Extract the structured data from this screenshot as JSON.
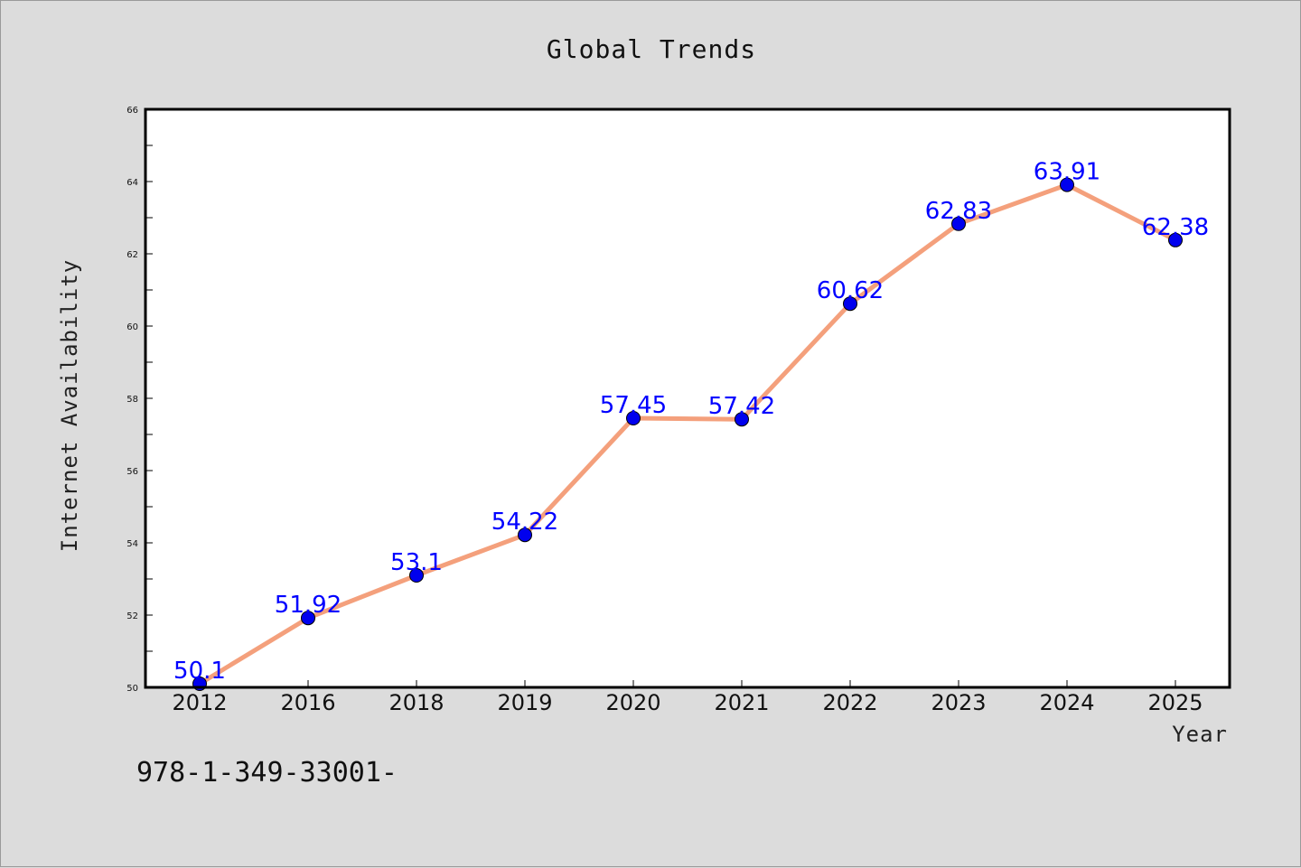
{
  "chart_data": {
    "type": "line",
    "title": "Global Trends",
    "xlabel": "Year",
    "ylabel": "Internet Availability",
    "categories": [
      "2012",
      "2016",
      "2018",
      "2019",
      "2020",
      "2021",
      "2022",
      "2023",
      "2024",
      "2025"
    ],
    "series": [
      {
        "values": [
          50.1,
          51.92,
          53.1,
          54.22,
          57.45,
          57.42,
          60.62,
          62.83,
          63.91,
          62.38
        ],
        "labels": [
          "50.1",
          "51.92",
          "53.1",
          "54.22",
          "57.45",
          "57.42",
          "60.62",
          "62.83",
          "63.91",
          "62.38"
        ]
      }
    ],
    "ylim": [
      50,
      66
    ],
    "yticks": [
      50,
      52,
      54,
      56,
      58,
      60,
      62,
      64,
      66
    ],
    "grid": false,
    "legend": "none",
    "line_color": "#f4a07c",
    "marker_color": "#0000ee",
    "label_color": "#0000ff",
    "plot_background": "#ffffff",
    "figure_background": "#dcdcdc"
  },
  "footnote": "978-1-349-33001-"
}
